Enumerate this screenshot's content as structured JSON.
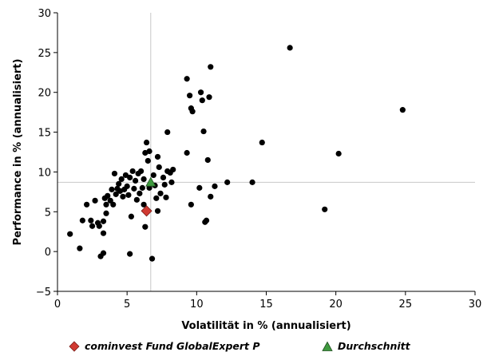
{
  "chart_data": {
    "type": "scatter",
    "title": "",
    "xlabel": "Volatilität in % (annualisiert)",
    "ylabel": "Performance in % (annualisiert)",
    "xlim": [
      0,
      30
    ],
    "ylim": [
      -5,
      30
    ],
    "xticks": [
      0,
      5,
      10,
      15,
      20,
      25,
      30
    ],
    "yticks": [
      -5,
      0,
      5,
      10,
      15,
      20,
      25,
      30
    ],
    "xtick_labels": [
      "0",
      "5",
      "10",
      "15",
      "20",
      "25",
      "30"
    ],
    "ytick_labels": [
      "−5",
      "0",
      "5",
      "10",
      "15",
      "20",
      "25",
      "30"
    ],
    "grid": false,
    "legend_position": "bottom",
    "reference_lines": {
      "x": 6.7,
      "y": 8.7
    },
    "series": [
      {
        "name": "cominvest Fund GlobalExpert P",
        "marker": "diamond",
        "color": "#d13a32",
        "points": [
          [
            6.4,
            5.1
          ]
        ]
      },
      {
        "name": "Durchschnitt",
        "marker": "triangle",
        "color": "#3f9a3f",
        "points": [
          [
            6.7,
            8.7
          ]
        ]
      },
      {
        "name": "",
        "marker": "circle",
        "color": "#000000",
        "points": [
          [
            0.9,
            2.2
          ],
          [
            1.6,
            0.4
          ],
          [
            1.8,
            3.9
          ],
          [
            2.1,
            5.9
          ],
          [
            2.4,
            3.9
          ],
          [
            2.5,
            3.2
          ],
          [
            2.7,
            6.4
          ],
          [
            2.9,
            3.6
          ],
          [
            3.0,
            3.2
          ],
          [
            3.1,
            -0.6
          ],
          [
            3.3,
            2.3
          ],
          [
            3.3,
            3.8
          ],
          [
            3.3,
            -0.2
          ],
          [
            3.4,
            6.7
          ],
          [
            3.5,
            4.8
          ],
          [
            3.5,
            5.9
          ],
          [
            3.6,
            7.0
          ],
          [
            3.8,
            6.4
          ],
          [
            3.9,
            7.8
          ],
          [
            4.0,
            5.9
          ],
          [
            4.1,
            9.8
          ],
          [
            4.2,
            7.2
          ],
          [
            4.3,
            7.9
          ],
          [
            4.4,
            8.5
          ],
          [
            4.5,
            7.6
          ],
          [
            4.6,
            9.1
          ],
          [
            4.7,
            6.9
          ],
          [
            4.8,
            7.8
          ],
          [
            4.9,
            9.6
          ],
          [
            5.0,
            8.2
          ],
          [
            5.1,
            7.1
          ],
          [
            5.2,
            9.3
          ],
          [
            5.2,
            -0.3
          ],
          [
            5.3,
            4.4
          ],
          [
            5.4,
            10.1
          ],
          [
            5.5,
            7.9
          ],
          [
            5.6,
            8.9
          ],
          [
            5.7,
            6.5
          ],
          [
            5.8,
            9.8
          ],
          [
            5.9,
            7.3
          ],
          [
            6.0,
            10.1
          ],
          [
            6.1,
            8.0
          ],
          [
            6.2,
            5.9
          ],
          [
            6.2,
            9.1
          ],
          [
            6.3,
            12.4
          ],
          [
            6.3,
            3.1
          ],
          [
            6.4,
            13.7
          ],
          [
            6.5,
            11.4
          ],
          [
            6.6,
            12.6
          ],
          [
            6.6,
            8.0
          ],
          [
            6.8,
            -0.9
          ],
          [
            6.9,
            9.6
          ],
          [
            7.0,
            8.3
          ],
          [
            7.1,
            6.7
          ],
          [
            7.2,
            5.1
          ],
          [
            7.2,
            11.9
          ],
          [
            7.3,
            10.6
          ],
          [
            7.4,
            7.3
          ],
          [
            7.6,
            9.3
          ],
          [
            7.7,
            8.4
          ],
          [
            7.8,
            6.8
          ],
          [
            7.9,
            10.1
          ],
          [
            7.9,
            15.0
          ],
          [
            8.1,
            9.9
          ],
          [
            8.2,
            8.7
          ],
          [
            8.3,
            10.3
          ],
          [
            9.3,
            21.7
          ],
          [
            9.3,
            12.4
          ],
          [
            9.5,
            19.6
          ],
          [
            9.6,
            18.0
          ],
          [
            9.6,
            5.9
          ],
          [
            9.7,
            17.6
          ],
          [
            10.2,
            8.0
          ],
          [
            10.3,
            20.0
          ],
          [
            10.4,
            19.0
          ],
          [
            10.5,
            15.1
          ],
          [
            10.6,
            3.7
          ],
          [
            10.7,
            3.9
          ],
          [
            10.8,
            11.5
          ],
          [
            10.9,
            19.4
          ],
          [
            11.0,
            6.9
          ],
          [
            11.0,
            23.2
          ],
          [
            11.3,
            8.2
          ],
          [
            12.2,
            8.7
          ],
          [
            14.0,
            8.7
          ],
          [
            14.7,
            13.7
          ],
          [
            16.7,
            25.6
          ],
          [
            19.2,
            5.3
          ],
          [
            20.2,
            12.3
          ],
          [
            24.8,
            17.8
          ]
        ]
      }
    ]
  },
  "legend": {
    "item1_label": "cominvest Fund GlobalExpert P",
    "item2_label": "Durchschnitt"
  }
}
